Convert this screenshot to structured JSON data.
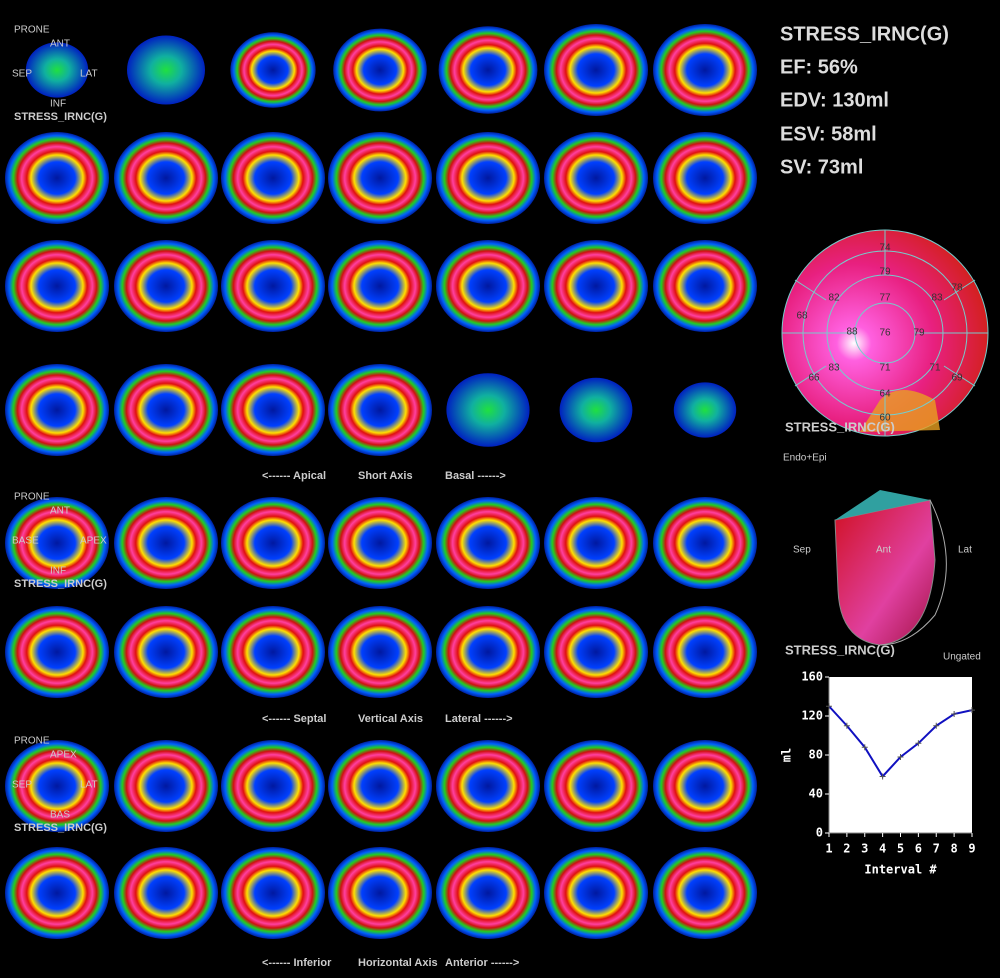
{
  "header": {
    "title": "STRESS_IRNC(G)",
    "ef": "EF: 56%",
    "edv": "EDV: 130ml",
    "esv": "ESV: 58ml",
    "sv": "SV: 73ml"
  },
  "short_axis": {
    "orientation": {
      "top": "PRONE",
      "up": "ANT",
      "left": "SEP",
      "right": "LAT",
      "down": "INF"
    },
    "study": "STRESS_IRNC(G)",
    "captions": [
      "<------ Apical",
      "Short Axis",
      "Basal ------>"
    ]
  },
  "vertical_axis": {
    "orientation": {
      "top": "PRONE",
      "up": "ANT",
      "left": "BASE",
      "right": "APEX",
      "down": "INF"
    },
    "study": "STRESS_IRNC(G)",
    "captions": [
      "<------ Septal",
      "Vertical Axis",
      "Lateral ------>"
    ]
  },
  "horizontal_axis": {
    "orientation": {
      "top": "PRONE",
      "up": "APEX",
      "left": "SEP",
      "right": "LAT",
      "down": "BAS"
    },
    "study": "STRESS_IRNC(G)",
    "captions": [
      "<------ Inferior",
      "Horizontal Axis",
      "Anterior ------>"
    ]
  },
  "polar_map": {
    "values": [
      74,
      79,
      77,
      82,
      68,
      83,
      78,
      88,
      76,
      79,
      83,
      71,
      71,
      66,
      64,
      69,
      60
    ],
    "study": "STRESS_IRNC(G)",
    "mode": "Endo+Epi"
  },
  "surface": {
    "labels": [
      "Sep",
      "Ant",
      "Lat"
    ],
    "study": "STRESS_IRNC(G)",
    "mode": "Ungated"
  },
  "chart_data": {
    "type": "line",
    "x": [
      1,
      2,
      3,
      4,
      5,
      6,
      7,
      8,
      9
    ],
    "values": [
      130,
      110,
      88,
      58,
      78,
      92,
      110,
      122,
      126
    ],
    "xlim": [
      1,
      9
    ],
    "ylim": [
      0,
      160
    ],
    "xticks": [
      1,
      2,
      3,
      4,
      5,
      6,
      7,
      8,
      9
    ],
    "yticks": [
      0,
      40,
      80,
      120,
      160
    ],
    "xlabel": "Interval #",
    "ylabel": "ml",
    "color": "#1010c0"
  }
}
